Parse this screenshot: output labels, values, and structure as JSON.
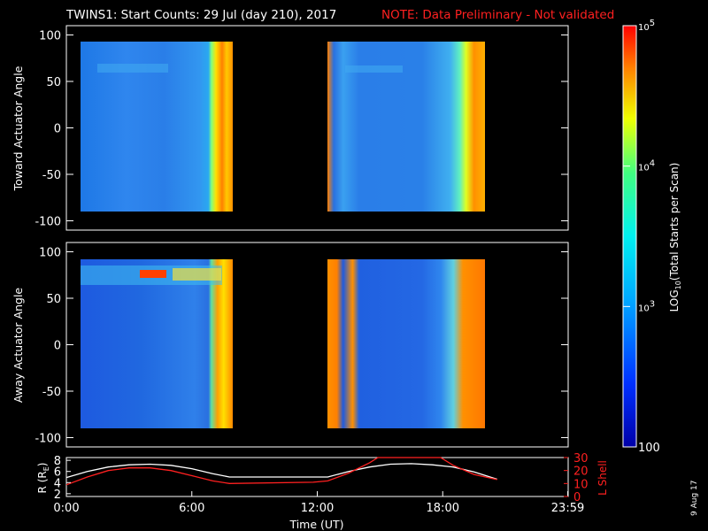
{
  "title": "TWINS1: Start Counts: 29 Jul (day 210), 2017",
  "note": "NOTE: Data Preliminary - Not validated",
  "datestamp": "9 Aug 17",
  "colors": {
    "background": "#000000",
    "axes": "#ffffff",
    "note": "#ff0000",
    "r_line": "#ffffff",
    "lshell_line": "#ff2020"
  },
  "colorbar": {
    "label": "LOG10(Total Starts per Scan)",
    "label_main": "LOG",
    "label_sub": "10",
    "label_rest": "(Total Starts per Scan)",
    "tick_labels": [
      "100",
      "10",
      "10",
      "10"
    ],
    "tick_exps": [
      "",
      "3",
      "4",
      "5"
    ],
    "range": [
      100,
      100000
    ],
    "scale": "log",
    "colormap": "rainbow (blue-cyan-yellow-red)"
  },
  "chart_data": [
    {
      "type": "heatmap",
      "ylabel": "Toward Actuator Angle",
      "xlim": [
        0,
        24
      ],
      "ylim": [
        -110,
        110
      ],
      "yticks": [
        "100",
        "50",
        "0",
        "-50",
        "-100"
      ],
      "ytick_values": [
        100,
        50,
        0,
        -50,
        -100
      ],
      "data_intervals_hours": [
        [
          0.0,
          7.8
        ],
        [
          12.5,
          20.6
        ]
      ],
      "angle_range": [
        -88,
        90
      ],
      "description_levels": "mostly ~10^3 background, high counts (~10^5) near end of each interval"
    },
    {
      "type": "heatmap",
      "ylabel": "Away Actuator Angle",
      "xlim": [
        0,
        24
      ],
      "ylim": [
        -110,
        110
      ],
      "yticks": [
        "100",
        "50",
        "0",
        "-50",
        "-100"
      ],
      "ytick_values": [
        100,
        50,
        0,
        -50,
        -100
      ],
      "data_intervals_hours": [
        [
          0.0,
          7.8
        ],
        [
          12.5,
          20.6
        ]
      ],
      "angle_range": [
        -88,
        90
      ],
      "description_levels": "~10^3 background, enhanced near +70 deg early in day, high counts near end of each interval"
    },
    {
      "type": "line",
      "xlabel": "Time (UT)",
      "ylabel_left": "R (R",
      "ylabel_left_sub": "E",
      "ylabel_left_close": ")",
      "ylabel_right": "L Shell",
      "xticks": [
        "0:00",
        "6:00",
        "12:00",
        "18:00",
        "23:59"
      ],
      "xtick_values": [
        0,
        6,
        12,
        18,
        23.98
      ],
      "xlim": [
        0,
        24
      ],
      "ylim_left": [
        1.5,
        8.5
      ],
      "yticks_left": [
        "2",
        "4",
        "6",
        "8"
      ],
      "ylim_right": [
        0,
        30
      ],
      "yticks_right": [
        "0",
        "10",
        "20",
        "30"
      ],
      "series": [
        {
          "name": "R",
          "axis": "left",
          "x": [
            0,
            1,
            2,
            3,
            4,
            5,
            6,
            7,
            7.8,
            12.5,
            13.5,
            14.5,
            15.5,
            16.5,
            17.5,
            18.5,
            19.5,
            20.6
          ],
          "y": [
            4.9,
            6.0,
            6.8,
            7.2,
            7.3,
            7.1,
            6.5,
            5.6,
            5.0,
            5.0,
            6.0,
            6.8,
            7.3,
            7.4,
            7.2,
            6.8,
            5.9,
            4.6
          ]
        },
        {
          "name": "L Shell",
          "axis": "right",
          "x": [
            0,
            1,
            2,
            3,
            4,
            5,
            6,
            7,
            7.8,
            11.8,
            12.5,
            13.5,
            14.5,
            14.9,
            17.9,
            18.5,
            19.5,
            20.6
          ],
          "y": [
            9,
            15,
            20,
            22,
            22,
            20,
            16,
            12,
            10,
            11,
            12,
            18,
            26,
            30,
            30,
            24,
            17,
            13
          ]
        }
      ]
    }
  ]
}
